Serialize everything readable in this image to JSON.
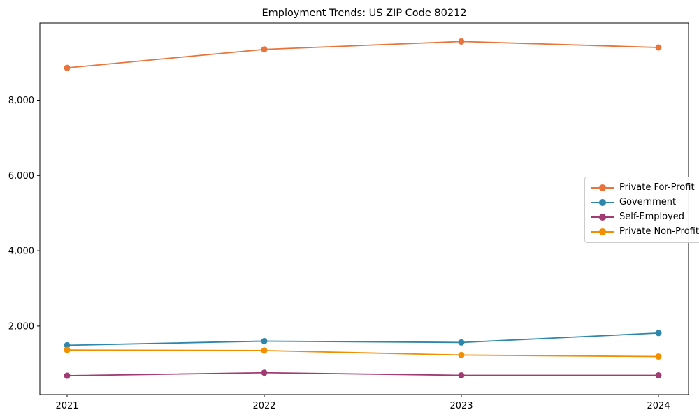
{
  "chart_data": {
    "type": "line",
    "title": "Employment Trends: US ZIP Code 80212",
    "xlabel": "",
    "ylabel": "",
    "categories": [
      "2021",
      "2022",
      "2023",
      "2024"
    ],
    "series": [
      {
        "name": "Private For-Profit",
        "color": "#E8743B",
        "values": [
          8860,
          9350,
          9560,
          9400
        ]
      },
      {
        "name": "Government",
        "color": "#2E86AB",
        "values": [
          1490,
          1600,
          1565,
          1815
        ]
      },
      {
        "name": "Self-Employed",
        "color": "#A23B72",
        "values": [
          680,
          760,
          690,
          690
        ]
      },
      {
        "name": "Private Non-Profit",
        "color": "#F18F01",
        "values": [
          1365,
          1350,
          1230,
          1190
        ]
      }
    ],
    "yticks": {
      "values": [
        2000,
        4000,
        6000,
        8000
      ],
      "labels": [
        "2,000",
        "4,000",
        "6,000",
        "8,000"
      ]
    },
    "ylim": [
      180,
      10050
    ],
    "grid": false,
    "legend_position": "center-right",
    "axis_color": "#000000",
    "background_color": "#ffffff"
  }
}
